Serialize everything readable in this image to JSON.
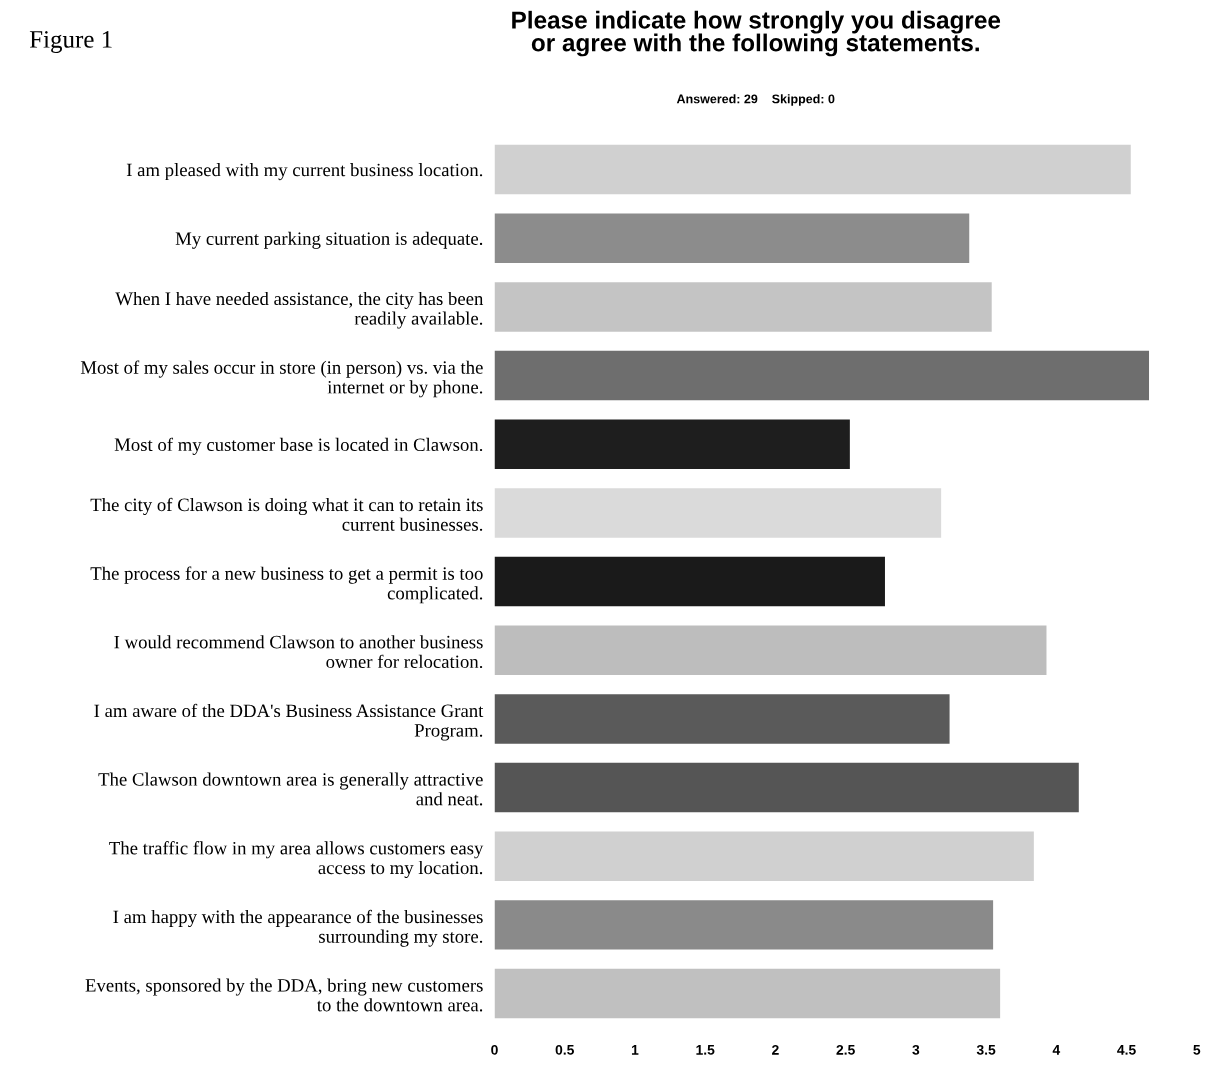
{
  "chart_data": {
    "type": "bar",
    "orientation": "horizontal",
    "title": "Please indicate how strongly you disagree\nor agree with the following statements.",
    "subtitle": "Answered: 29    Skipped: 0",
    "annotations": [
      "Figure 1"
    ],
    "categories": [
      "I am pleased with my current business location.",
      "My current parking situation is adequate.",
      "When I have needed assistance, the city has been\nreadily available.",
      "Most of my sales occur in store (in person) vs. via the\ninternet or by phone.",
      "Most of my customer base is located in Clawson.",
      "The city of Clawson is doing what it can to retain its\ncurrent businesses.",
      "The process for a new business to get a permit is too\ncomplicated.",
      "I would recommend Clawson to another business\nowner for relocation.",
      "I am aware of the DDA's Business Assistance Grant\nProgram.",
      "The Clawson downtown area is generally attractive\nand neat.",
      "The traffic flow in my area allows customers easy\naccess to my location.",
      "I am happy with the appearance of the businesses\nsurrounding my store.",
      "Events, sponsored by the DDA, bring new customers\nto the downtown area."
    ],
    "values": [
      4.53,
      3.38,
      3.54,
      4.66,
      2.53,
      3.18,
      2.78,
      3.93,
      3.24,
      4.16,
      3.84,
      3.55,
      3.6
    ],
    "colors": [
      "#d0d0d0",
      "#8c8c8c",
      "#c4c4c4",
      "#6e6e6e",
      "#1e1e1e",
      "#dadada",
      "#1a1a1a",
      "#bdbdbd",
      "#5a5a5a",
      "#555555",
      "#d0d0d0",
      "#8a8a8a",
      "#c0c0c0"
    ],
    "xlim": [
      0,
      5
    ],
    "xticks": [
      0,
      0.5,
      1,
      1.5,
      2,
      2.5,
      3,
      3.5,
      4,
      4.5,
      5
    ],
    "grid": false,
    "legend": false
  }
}
